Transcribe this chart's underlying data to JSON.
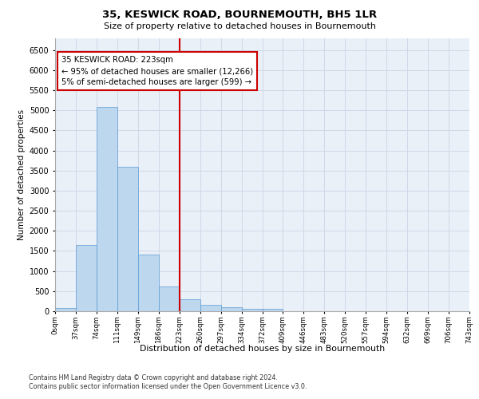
{
  "title": "35, KESWICK ROAD, BOURNEMOUTH, BH5 1LR",
  "subtitle": "Size of property relative to detached houses in Bournemouth",
  "xlabel": "Distribution of detached houses by size in Bournemouth",
  "ylabel": "Number of detached properties",
  "bar_values": [
    75,
    1650,
    5080,
    3600,
    1400,
    620,
    300,
    150,
    100,
    60,
    60,
    0,
    0,
    0,
    0,
    0,
    0,
    0,
    0,
    0
  ],
  "bar_color": "#bdd7ee",
  "bar_edge_color": "#5b9bd5",
  "x_labels": [
    "0sqm",
    "37sqm",
    "74sqm",
    "111sqm",
    "149sqm",
    "186sqm",
    "223sqm",
    "260sqm",
    "297sqm",
    "334sqm",
    "372sqm",
    "409sqm",
    "446sqm",
    "483sqm",
    "520sqm",
    "557sqm",
    "594sqm",
    "632sqm",
    "669sqm",
    "706sqm",
    "743sqm"
  ],
  "ylim": [
    0,
    6800
  ],
  "yticks": [
    0,
    500,
    1000,
    1500,
    2000,
    2500,
    3000,
    3500,
    4000,
    4500,
    5000,
    5500,
    6000,
    6500
  ],
  "vline_x_index": 6,
  "annotation_text": "35 KESWICK ROAD: 223sqm\n← 95% of detached houses are smaller (12,266)\n5% of semi-detached houses are larger (599) →",
  "annotation_box_color": "white",
  "annotation_box_edge_color": "#cc0000",
  "vline_color": "#cc0000",
  "grid_color": "#d0d8e8",
  "background_color": "#eaf0f8",
  "footer_line1": "Contains HM Land Registry data © Crown copyright and database right 2024.",
  "footer_line2": "Contains public sector information licensed under the Open Government Licence v3.0."
}
